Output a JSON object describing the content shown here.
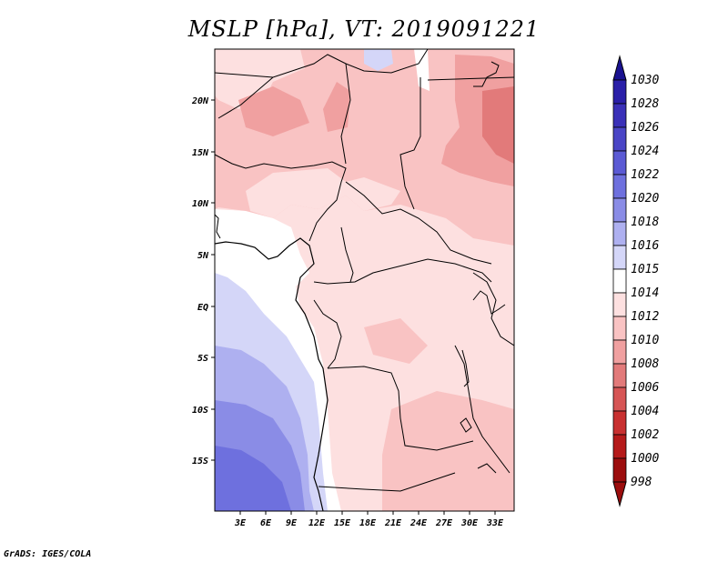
{
  "title": "MSLP [hPa], VT: 2019091221",
  "credit": "GrADS: IGES/COLA",
  "map": {
    "lat_labels": [
      "20N",
      "15N",
      "10N",
      "5N",
      "EQ",
      "5S",
      "10S",
      "15S"
    ],
    "lon_labels": [
      "3E",
      "6E",
      "9E",
      "12E",
      "15E",
      "18E",
      "21E",
      "24E",
      "27E",
      "30E",
      "33E"
    ]
  },
  "colorbar": {
    "levels": [
      "1030",
      "1028",
      "1026",
      "1024",
      "1022",
      "1020",
      "1018",
      "1016",
      "1015",
      "1014",
      "1012",
      "1010",
      "1008",
      "1006",
      "1004",
      "1002",
      "1000",
      "998"
    ],
    "colors": [
      "#1a1290",
      "#2a1fa8",
      "#3a30b8",
      "#4a45c6",
      "#5b5ad4",
      "#6e70de",
      "#8a8ce6",
      "#aeb0f0",
      "#d4d6f8",
      "#ffffff",
      "#fde0e0",
      "#f9c3c3",
      "#f0a0a0",
      "#e27a7a",
      "#d65555",
      "#c83030",
      "#b51a1a",
      "#9c0d0d"
    ]
  }
}
